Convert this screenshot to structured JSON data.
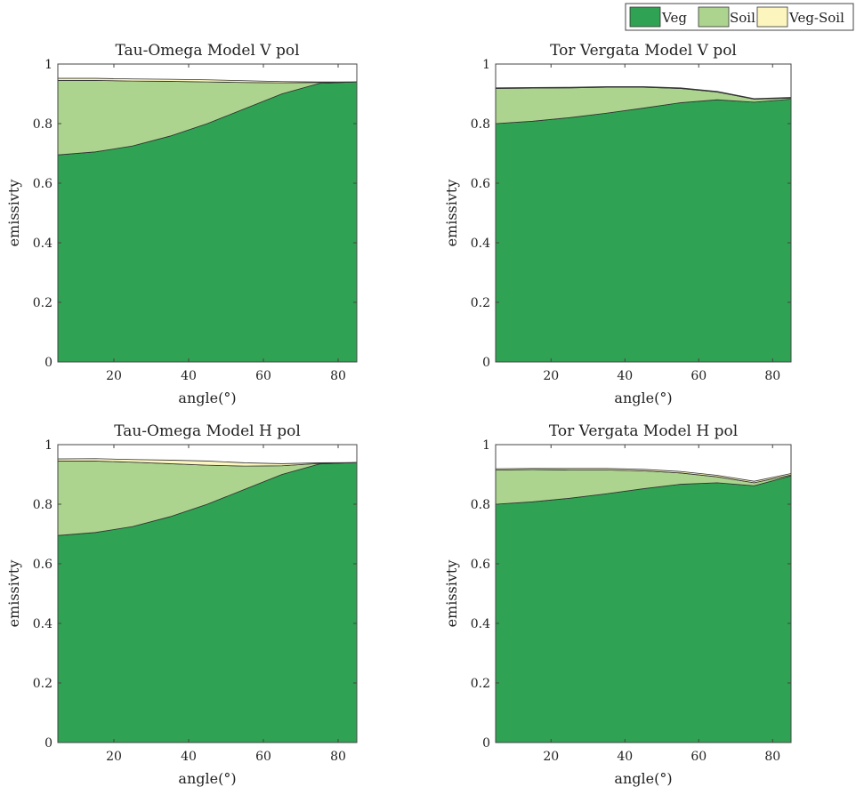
{
  "colors": {
    "veg": "#2fa353",
    "soil": "#acd48f",
    "veg_soil": "#fcf5be",
    "edge": "#333333",
    "axis": "#444444"
  },
  "legend": {
    "placement": "top-right",
    "entries": [
      "Veg",
      "Soil",
      "Veg-Soil"
    ]
  },
  "chart_data": [
    {
      "type": "area",
      "stacked": true,
      "title": "Tau-Omega Model V pol",
      "xlabel": "angle(°)",
      "ylabel": "emissivty",
      "xlim": [
        5,
        85
      ],
      "ylim": [
        0,
        1
      ],
      "xticks": [
        20,
        40,
        60,
        80
      ],
      "yticks": [
        0,
        0.2,
        0.4,
        0.6,
        0.8,
        1
      ],
      "x": [
        5,
        15,
        25,
        35,
        45,
        55,
        65,
        75,
        85
      ],
      "series": [
        {
          "name": "Veg",
          "values": [
            0.695,
            0.705,
            0.725,
            0.758,
            0.8,
            0.85,
            0.9,
            0.935,
            0.94
          ]
        },
        {
          "name": "Soil",
          "values": [
            0.25,
            0.24,
            0.218,
            0.184,
            0.14,
            0.088,
            0.037,
            0.003,
            0.0
          ]
        },
        {
          "name": "Veg-Soil",
          "values": [
            0.007,
            0.007,
            0.007,
            0.007,
            0.007,
            0.006,
            0.004,
            0.002,
            0.0
          ]
        }
      ]
    },
    {
      "type": "area",
      "stacked": true,
      "title": "Tor Vergata Model V pol",
      "xlabel": "angle(°)",
      "ylabel": "emissivty",
      "xlim": [
        5,
        85
      ],
      "ylim": [
        0,
        1
      ],
      "xticks": [
        20,
        40,
        60,
        80
      ],
      "yticks": [
        0,
        0.2,
        0.4,
        0.6,
        0.8,
        1
      ],
      "x": [
        5,
        15,
        25,
        35,
        45,
        55,
        65,
        75,
        85
      ],
      "series": [
        {
          "name": "Veg",
          "values": [
            0.8,
            0.808,
            0.82,
            0.835,
            0.852,
            0.87,
            0.88,
            0.872,
            0.882
          ]
        },
        {
          "name": "Soil",
          "values": [
            0.118,
            0.111,
            0.1,
            0.087,
            0.07,
            0.048,
            0.026,
            0.01,
            0.004
          ]
        },
        {
          "name": "Veg-Soil",
          "values": [
            0.002,
            0.002,
            0.002,
            0.002,
            0.002,
            0.002,
            0.002,
            0.002,
            0.002
          ]
        }
      ]
    },
    {
      "type": "area",
      "stacked": true,
      "title": "Tau-Omega Model H pol",
      "xlabel": "angle(°)",
      "ylabel": "emissivty",
      "xlim": [
        5,
        85
      ],
      "ylim": [
        0,
        1
      ],
      "xticks": [
        20,
        40,
        60,
        80
      ],
      "yticks": [
        0,
        0.2,
        0.4,
        0.6,
        0.8,
        1
      ],
      "x": [
        5,
        15,
        25,
        35,
        45,
        55,
        65,
        75,
        85
      ],
      "series": [
        {
          "name": "Veg",
          "values": [
            0.695,
            0.705,
            0.725,
            0.758,
            0.8,
            0.85,
            0.9,
            0.935,
            0.94
          ]
        },
        {
          "name": "Soil",
          "values": [
            0.25,
            0.24,
            0.216,
            0.178,
            0.131,
            0.078,
            0.029,
            0.002,
            0.0
          ]
        },
        {
          "name": "Veg-Soil",
          "values": [
            0.007,
            0.008,
            0.009,
            0.012,
            0.014,
            0.011,
            0.007,
            0.002,
            0.0
          ]
        }
      ]
    },
    {
      "type": "area",
      "stacked": true,
      "title": "Tor Vergata Model H pol",
      "xlabel": "angle(°)",
      "ylabel": "emissivty",
      "xlim": [
        5,
        85
      ],
      "ylim": [
        0,
        1
      ],
      "xticks": [
        20,
        40,
        60,
        80
      ],
      "yticks": [
        0,
        0.2,
        0.4,
        0.6,
        0.8,
        1
      ],
      "x": [
        5,
        15,
        25,
        35,
        45,
        55,
        65,
        75,
        85
      ],
      "series": [
        {
          "name": "Veg",
          "values": [
            0.8,
            0.808,
            0.82,
            0.835,
            0.852,
            0.867,
            0.872,
            0.862,
            0.895
          ]
        },
        {
          "name": "Soil",
          "values": [
            0.115,
            0.108,
            0.095,
            0.08,
            0.06,
            0.038,
            0.02,
            0.01,
            0.003
          ]
        },
        {
          "name": "Veg-Soil",
          "values": [
            0.004,
            0.004,
            0.005,
            0.005,
            0.005,
            0.005,
            0.005,
            0.005,
            0.005
          ]
        }
      ]
    }
  ]
}
